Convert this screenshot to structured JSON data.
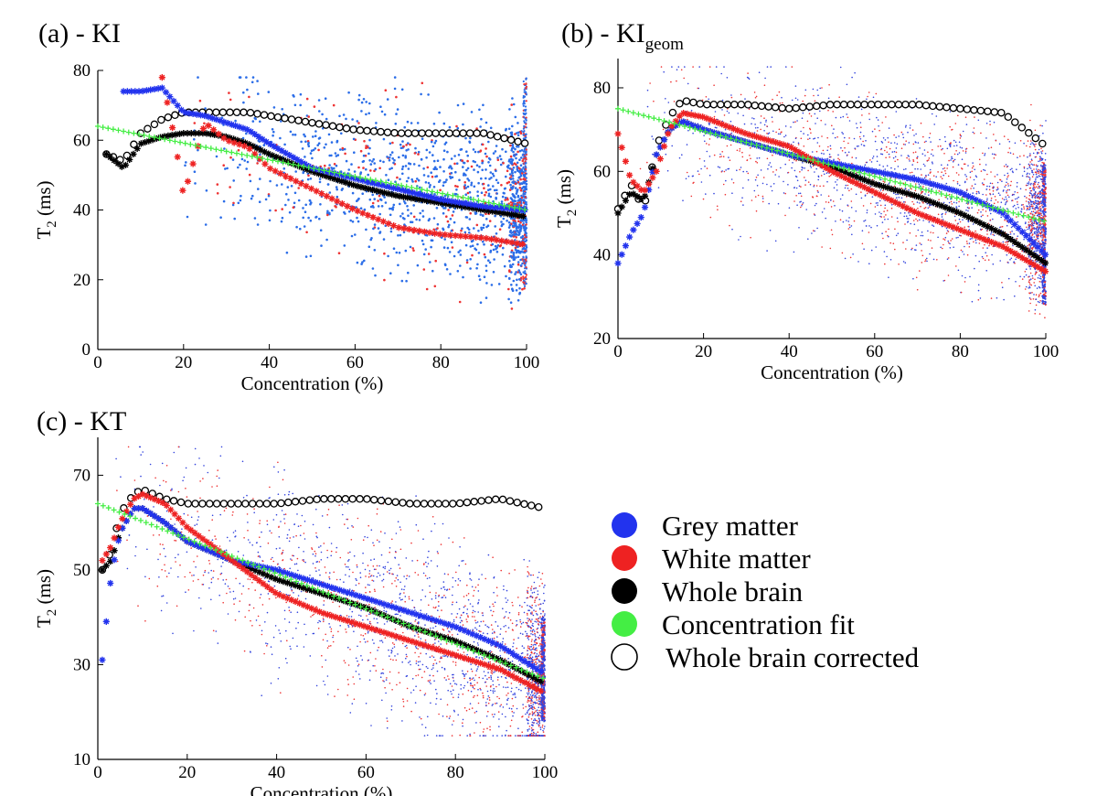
{
  "legend": [
    {
      "key": "grey",
      "label": "Grey matter",
      "color": "#2233ee"
    },
    {
      "key": "white",
      "label": "White matter",
      "color": "#ee2222"
    },
    {
      "key": "whole",
      "label": "Whole brain",
      "color": "#000000"
    },
    {
      "key": "fit",
      "label": "Concentration fit",
      "color": "#44ee44"
    },
    {
      "key": "corrected",
      "label": "Whole brain corrected",
      "color": "#ffffff"
    }
  ],
  "chart_data": [
    {
      "id": "a",
      "type": "scatter",
      "title": "(a) - KI",
      "title_sub": "",
      "xlabel": "Concentration (%)",
      "ylabel_main": "T",
      "ylabel_sub": "2",
      "ylabel_unit": " (ms)",
      "xlim": [
        0,
        100
      ],
      "ylim": [
        0,
        80
      ],
      "xticks": [
        0,
        20,
        40,
        60,
        80,
        100
      ],
      "yticks": [
        0,
        20,
        40,
        60,
        80
      ],
      "cloud": {
        "color": "#2b6de8",
        "x_from": 20,
        "y_min": 5,
        "y_max": 78
      },
      "series": [
        {
          "name": "Whole brain corrected",
          "marker": "circle",
          "x": [
            2,
            6,
            10,
            15,
            20,
            25,
            30,
            35,
            40,
            50,
            60,
            70,
            80,
            90,
            100
          ],
          "y": [
            56,
            54,
            62,
            66,
            68,
            68,
            68,
            68,
            67,
            65,
            63,
            62,
            62,
            62,
            59
          ]
        },
        {
          "name": "Whole brain",
          "marker": "star",
          "x": [
            2,
            6,
            10,
            15,
            20,
            25,
            30,
            35,
            40,
            50,
            60,
            70,
            80,
            90,
            100
          ],
          "y": [
            56,
            52,
            59,
            61,
            62,
            62,
            61,
            59,
            56,
            51,
            47,
            44,
            42,
            40,
            38
          ]
        },
        {
          "name": "Grey matter",
          "marker": "star",
          "x": [
            6,
            10,
            15,
            20,
            25,
            30,
            35,
            40,
            50,
            60,
            70,
            80,
            90,
            100
          ],
          "y": [
            74,
            74,
            75,
            68,
            67,
            65,
            63,
            59,
            52,
            49,
            46,
            43,
            41,
            40
          ]
        },
        {
          "name": "White matter",
          "marker": "star",
          "x": [
            15,
            18,
            20,
            25,
            30,
            35,
            40,
            50,
            60,
            70,
            80,
            90,
            100
          ],
          "y": [
            78,
            60,
            44,
            65,
            60,
            58,
            52,
            46,
            40,
            35,
            33,
            32,
            30
          ]
        },
        {
          "name": "Concentration fit",
          "marker": "plus",
          "x": [
            0,
            100
          ],
          "y": [
            64,
            40
          ]
        }
      ]
    },
    {
      "id": "b",
      "type": "scatter",
      "title": "(b) - KI",
      "title_sub": "geom",
      "xlabel": "Concentration (%)",
      "ylabel_main": "T",
      "ylabel_sub": "2",
      "ylabel_unit": " (ms)",
      "xlim": [
        0,
        100
      ],
      "ylim": [
        20,
        87
      ],
      "xticks": [
        0,
        20,
        40,
        60,
        80,
        100
      ],
      "yticks": [
        20,
        40,
        60,
        80
      ],
      "cloud": {
        "color": "#3344dd",
        "x_from": 5,
        "y_min": 25,
        "y_max": 85
      },
      "series": [
        {
          "name": "Whole brain corrected",
          "marker": "circle",
          "x": [
            0,
            3,
            6,
            9,
            12,
            15,
            20,
            30,
            40,
            50,
            60,
            70,
            80,
            90,
            100
          ],
          "y": [
            51,
            57,
            51,
            66,
            73,
            77,
            76,
            76,
            75,
            76,
            76,
            76,
            75,
            74,
            66
          ]
        },
        {
          "name": "Whole brain",
          "marker": "star",
          "x": [
            0,
            3,
            6,
            9,
            12,
            15,
            20,
            30,
            40,
            50,
            60,
            70,
            80,
            90,
            100
          ],
          "y": [
            50,
            55,
            53,
            64,
            70,
            72,
            70,
            67,
            64,
            61,
            57,
            54,
            50,
            45,
            38
          ]
        },
        {
          "name": "Grey matter",
          "marker": "star",
          "x": [
            0,
            3,
            6,
            9,
            12,
            15,
            20,
            30,
            40,
            50,
            60,
            70,
            80,
            90,
            100
          ],
          "y": [
            38,
            45,
            50,
            64,
            70,
            72,
            70,
            67,
            64,
            62,
            60,
            58,
            55,
            50,
            40
          ]
        },
        {
          "name": "White matter",
          "marker": "star",
          "x": [
            0,
            3,
            6,
            9,
            12,
            15,
            20,
            30,
            40,
            50,
            60,
            70,
            80,
            90,
            100
          ],
          "y": [
            69,
            58,
            55,
            60,
            70,
            74,
            73,
            69,
            66,
            60,
            55,
            50,
            46,
            42,
            36
          ]
        },
        {
          "name": "Concentration fit",
          "marker": "plus",
          "x": [
            0,
            100
          ],
          "y": [
            75,
            48
          ]
        }
      ]
    },
    {
      "id": "c",
      "type": "scatter",
      "title": "(c) - KT",
      "title_sub": "",
      "xlabel": "Concentration (%)",
      "ylabel_main": "T",
      "ylabel_sub": "2",
      "ylabel_unit": " (ms)",
      "xlim": [
        0,
        100
      ],
      "ylim": [
        10,
        78
      ],
      "xticks": [
        0,
        20,
        40,
        60,
        80,
        100
      ],
      "yticks": [
        10,
        30,
        50,
        70
      ],
      "cloud": {
        "color": "#3344dd",
        "x_from": 3,
        "y_min": 15,
        "y_max": 76
      },
      "series": [
        {
          "name": "Whole brain corrected",
          "marker": "circle",
          "x": [
            1,
            3,
            5,
            8,
            10,
            15,
            20,
            30,
            40,
            50,
            60,
            70,
            80,
            90,
            100
          ],
          "y": [
            50,
            54,
            62,
            66,
            67,
            65,
            64,
            64,
            64,
            65,
            65,
            64,
            64,
            65,
            63
          ]
        },
        {
          "name": "Whole brain",
          "marker": "star",
          "x": [
            1,
            3,
            5,
            8,
            10,
            15,
            20,
            30,
            40,
            50,
            60,
            70,
            80,
            90,
            100
          ],
          "y": [
            50,
            52,
            58,
            63,
            63,
            60,
            56,
            52,
            48,
            45,
            42,
            38,
            35,
            31,
            26
          ]
        },
        {
          "name": "Grey matter",
          "marker": "star",
          "x": [
            1,
            3,
            5,
            8,
            10,
            15,
            20,
            30,
            40,
            50,
            60,
            70,
            80,
            90,
            100
          ],
          "y": [
            31,
            49,
            58,
            63,
            63,
            60,
            56,
            52,
            50,
            47,
            44,
            41,
            38,
            34,
            28
          ]
        },
        {
          "name": "White matter",
          "marker": "star",
          "x": [
            1,
            3,
            5,
            8,
            10,
            15,
            20,
            30,
            40,
            50,
            60,
            70,
            80,
            90,
            100
          ],
          "y": [
            52,
            55,
            60,
            65,
            66,
            64,
            59,
            52,
            45,
            41,
            38,
            35,
            32,
            29,
            24
          ]
        },
        {
          "name": "Concentration fit",
          "marker": "plus",
          "x": [
            0,
            100
          ],
          "y": [
            64,
            27
          ]
        }
      ]
    }
  ]
}
